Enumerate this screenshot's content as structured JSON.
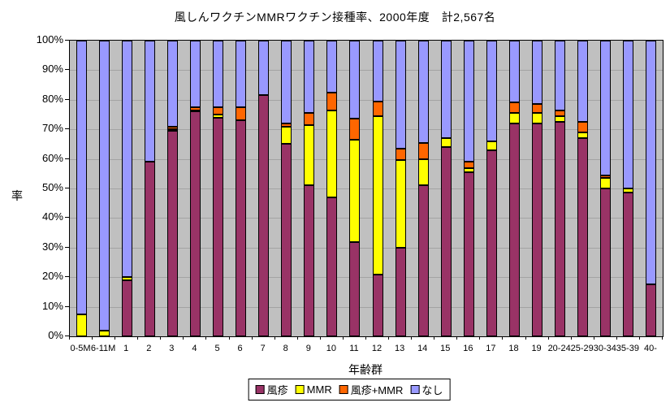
{
  "title": "風しんワクチンMMRワクチン接種率、2000年度　計2,567名",
  "y_axis": {
    "title": "率",
    "ticks": [
      "100%",
      "90%",
      "80%",
      "70%",
      "60%",
      "50%",
      "40%",
      "30%",
      "20%",
      "10%",
      "0%"
    ]
  },
  "x_axis": {
    "title": "年齢群"
  },
  "legend": [
    {
      "key": "rubella",
      "label": "風疹",
      "color": "#993366"
    },
    {
      "key": "mmr",
      "label": "MMR",
      "color": "#ffff00"
    },
    {
      "key": "rubella-mmr",
      "label": "風疹+MMR",
      "color": "#ff6600"
    },
    {
      "key": "none",
      "label": "なし",
      "color": "#9999ff"
    }
  ],
  "chart_data": {
    "type": "bar",
    "stacked": true,
    "percent_stacked": true,
    "title": "風しんワクチンMMRワクチン接種率、2000年度　計2,567名",
    "xlabel": "年齢群",
    "ylabel": "率",
    "ylim": [
      0,
      100
    ],
    "grid": true,
    "legend_position": "bottom",
    "plot_background": "#c0c0c0",
    "categories": [
      "0-5M",
      "6-11M",
      "1",
      "2",
      "3",
      "4",
      "5",
      "6",
      "7",
      "8",
      "9",
      "10",
      "11",
      "12",
      "13",
      "14",
      "15",
      "16",
      "17",
      "18",
      "19",
      "20-24",
      "25-29",
      "30-34",
      "35-39",
      "40-"
    ],
    "series": [
      {
        "name": "風疹",
        "color": "#993366",
        "values": [
          0,
          0,
          19,
          59,
          69.5,
          76,
          74,
          73,
          81.5,
          65,
          51,
          47,
          32,
          21,
          30,
          51,
          64,
          55.5,
          63,
          72,
          72,
          72.5,
          67,
          50,
          48.5,
          17.5
        ]
      },
      {
        "name": "MMR",
        "color": "#ffff00",
        "values": [
          7.5,
          2,
          1,
          0,
          0.5,
          0.5,
          1,
          0,
          0,
          6,
          20.5,
          29.5,
          34.5,
          53.5,
          29.5,
          9,
          3,
          1.5,
          3,
          3.5,
          3.5,
          2,
          2,
          3.5,
          1.5,
          0
        ]
      },
      {
        "name": "風疹+MMR",
        "color": "#ff6600",
        "values": [
          0,
          0,
          0,
          0,
          1,
          1,
          2.5,
          4.5,
          0,
          1,
          4,
          6,
          7,
          5,
          4,
          5.5,
          0,
          2,
          0,
          3.5,
          3,
          2,
          3.5,
          1,
          0,
          0
        ]
      },
      {
        "name": "なし",
        "color": "#9999ff",
        "values": [
          92.5,
          98,
          80,
          41,
          29,
          22.5,
          22.5,
          22.5,
          18.5,
          28,
          24.5,
          17.5,
          26.5,
          20.5,
          36.5,
          34.5,
          33,
          41,
          34,
          21,
          21.5,
          23.5,
          27.5,
          45.5,
          50,
          82.5
        ]
      }
    ]
  }
}
